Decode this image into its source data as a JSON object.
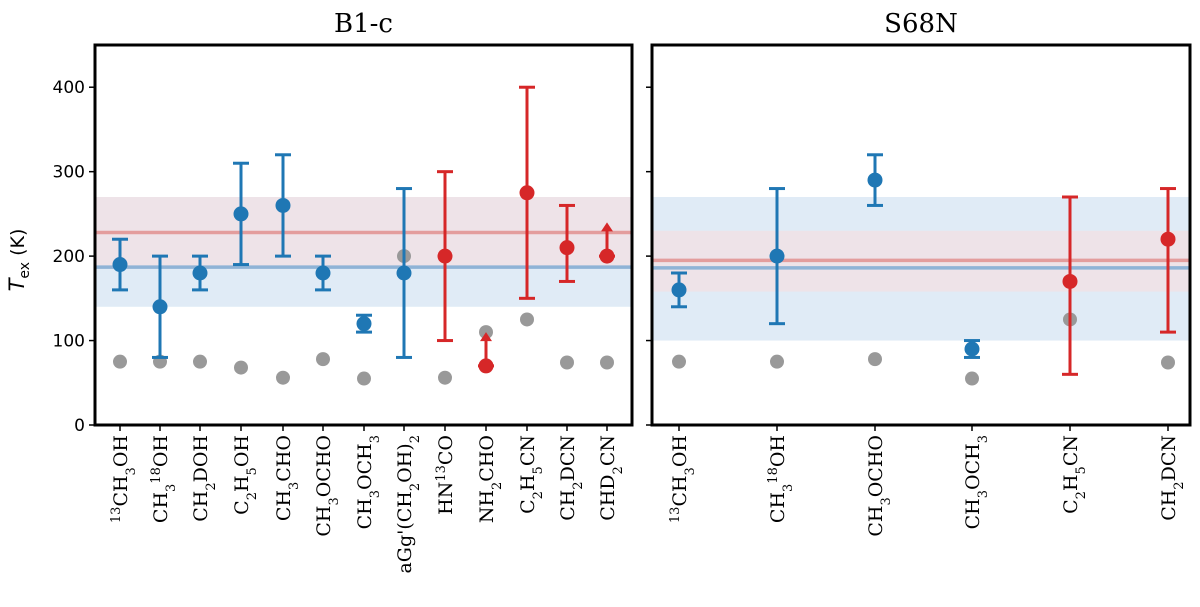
{
  "colors": {
    "blue": "#1f77b4",
    "red": "#d62728",
    "gray": "#999999",
    "blue_band": "#dae8f5",
    "red_band": "#f9dcdc",
    "blue_line": "#8fb3d6",
    "red_line": "#e39d9d"
  },
  "ylabel": "T",
  "ylabel_sub": "ex",
  "ylabel_unit": "(K)",
  "chart_data": [
    {
      "type": "scatter",
      "title": "B1-c",
      "ylim": [
        0,
        450
      ],
      "yticks": [
        0,
        100,
        200,
        300,
        400
      ],
      "ytick_labels": [
        "0",
        "100",
        "200",
        "300",
        "400"
      ],
      "grid": false,
      "categories": [
        [
          "13",
          "CH3OH"
        ],
        "CH318OH",
        "CH2DOH",
        "C2H5OH",
        "CH3CHO",
        "CH3OCHO",
        "CH3OCH3",
        "aGg'(CH2OH)2",
        "HN13CO",
        "NH2CHO",
        "C2H5CN",
        "CH2DCN",
        "CHD2CN"
      ],
      "category_labels": [
        [
          [
            "13",
            "sup"
          ],
          [
            "CH",
            ""
          ],
          [
            "3",
            "sub"
          ],
          [
            "OH",
            ""
          ]
        ],
        [
          [
            "CH",
            ""
          ],
          [
            "3",
            "sub"
          ],
          [
            "18",
            "sup"
          ],
          [
            "OH",
            ""
          ]
        ],
        [
          [
            "CH",
            ""
          ],
          [
            "2",
            "sub"
          ],
          [
            "DOH",
            ""
          ]
        ],
        [
          [
            "C",
            ""
          ],
          [
            "2",
            "sub"
          ],
          [
            "H",
            ""
          ],
          [
            "5",
            "sub"
          ],
          [
            "OH",
            ""
          ]
        ],
        [
          [
            "CH",
            ""
          ],
          [
            "3",
            "sub"
          ],
          [
            "CHO",
            ""
          ]
        ],
        [
          [
            "CH",
            ""
          ],
          [
            "3",
            "sub"
          ],
          [
            "OCHO",
            ""
          ]
        ],
        [
          [
            "CH",
            ""
          ],
          [
            "3",
            "sub"
          ],
          [
            "OCH",
            ""
          ],
          [
            "3",
            "sub"
          ]
        ],
        [
          [
            "aGg'(CH",
            ""
          ],
          [
            "2",
            "sub"
          ],
          [
            "OH)",
            ""
          ],
          [
            "2",
            "sub"
          ]
        ],
        [
          [
            "HN",
            ""
          ],
          [
            "13",
            "sup"
          ],
          [
            "CO",
            ""
          ]
        ],
        [
          [
            "NH",
            ""
          ],
          [
            "2",
            "sub"
          ],
          [
            "CHO",
            ""
          ]
        ],
        [
          [
            "C",
            ""
          ],
          [
            "2",
            "sub"
          ],
          [
            "H",
            ""
          ],
          [
            "5",
            "sub"
          ],
          [
            "CN",
            ""
          ]
        ],
        [
          [
            "CH",
            ""
          ],
          [
            "2",
            "sub"
          ],
          [
            "DCN",
            ""
          ]
        ],
        [
          [
            "CHD",
            ""
          ],
          [
            "2",
            "sub"
          ],
          [
            "CN",
            ""
          ]
        ]
      ],
      "series": [
        {
          "color": "blue",
          "points": [
            {
              "i": 0,
              "y": 190,
              "err_lo": 160,
              "err_hi": 220
            },
            {
              "i": 1,
              "y": 140,
              "err_lo": 80,
              "err_hi": 200
            },
            {
              "i": 2,
              "y": 180,
              "err_lo": 160,
              "err_hi": 200
            },
            {
              "i": 3,
              "y": 250,
              "err_lo": 190,
              "err_hi": 310
            },
            {
              "i": 4,
              "y": 260,
              "err_lo": 200,
              "err_hi": 320
            },
            {
              "i": 5,
              "y": 180,
              "err_lo": 160,
              "err_hi": 200
            },
            {
              "i": 6,
              "y": 120,
              "err_lo": 110,
              "err_hi": 130
            },
            {
              "i": 7,
              "y": 180,
              "err_lo": 80,
              "err_hi": 280
            }
          ]
        },
        {
          "color": "red",
          "points": [
            {
              "i": 8,
              "y": 200,
              "err_lo": 100,
              "err_hi": 300
            },
            {
              "i": 9,
              "y": 70,
              "lower_limit_to": 110
            },
            {
              "i": 10,
              "y": 275,
              "err_lo": 150,
              "err_hi": 400
            },
            {
              "i": 11,
              "y": 210,
              "err_lo": 170,
              "err_hi": 260
            },
            {
              "i": 12,
              "y": 200,
              "lower_limit_to": 240
            }
          ]
        },
        {
          "color": "gray",
          "points": [
            {
              "i": 0,
              "y": 75
            },
            {
              "i": 1,
              "y": 75
            },
            {
              "i": 2,
              "y": 75
            },
            {
              "i": 3,
              "y": 68
            },
            {
              "i": 4,
              "y": 56
            },
            {
              "i": 5,
              "y": 78
            },
            {
              "i": 6,
              "y": 55
            },
            {
              "i": 7,
              "y": 200
            },
            {
              "i": 8,
              "y": 56
            },
            {
              "i": 9,
              "y": 110
            },
            {
              "i": 10,
              "y": 125
            },
            {
              "i": 11,
              "y": 74
            },
            {
              "i": 12,
              "y": 74
            }
          ]
        }
      ],
      "bands": [
        {
          "color": "blue",
          "center": 187,
          "low": 140,
          "high": 270
        },
        {
          "color": "red",
          "center": 228,
          "low": 188,
          "high": 270
        }
      ]
    },
    {
      "type": "scatter",
      "title": "S68N",
      "ylim": [
        0,
        450
      ],
      "yticks": [
        0,
        100,
        200,
        300,
        400
      ],
      "grid": false,
      "categories": [
        "13CH3OH",
        "CH318OH",
        "CH3OCHO",
        "CH3OCH3",
        "C2H5CN",
        "CH2DCN"
      ],
      "category_labels": [
        [
          [
            "13",
            "sup"
          ],
          [
            "CH",
            ""
          ],
          [
            "3",
            "sub"
          ],
          [
            "OH",
            ""
          ]
        ],
        [
          [
            "CH",
            ""
          ],
          [
            "3",
            "sub"
          ],
          [
            "18",
            "sup"
          ],
          [
            "OH",
            ""
          ]
        ],
        [
          [
            "CH",
            ""
          ],
          [
            "3",
            "sub"
          ],
          [
            "OCHO",
            ""
          ]
        ],
        [
          [
            "CH",
            ""
          ],
          [
            "3",
            "sub"
          ],
          [
            "OCH",
            ""
          ],
          [
            "3",
            "sub"
          ]
        ],
        [
          [
            "C",
            ""
          ],
          [
            "2",
            "sub"
          ],
          [
            "H",
            ""
          ],
          [
            "5",
            "sub"
          ],
          [
            "CN",
            ""
          ]
        ],
        [
          [
            "CH",
            ""
          ],
          [
            "2",
            "sub"
          ],
          [
            "DCN",
            ""
          ]
        ]
      ],
      "series": [
        {
          "color": "blue",
          "points": [
            {
              "i": 0,
              "y": 160,
              "err_lo": 140,
              "err_hi": 180
            },
            {
              "i": 1,
              "y": 200,
              "err_lo": 120,
              "err_hi": 280
            },
            {
              "i": 2,
              "y": 290,
              "err_lo": 260,
              "err_hi": 320
            },
            {
              "i": 3,
              "y": 90,
              "err_lo": 80,
              "err_hi": 100
            }
          ]
        },
        {
          "color": "red",
          "points": [
            {
              "i": 4,
              "y": 170,
              "err_lo": 60,
              "err_hi": 270
            },
            {
              "i": 5,
              "y": 220,
              "err_lo": 110,
              "err_hi": 280
            }
          ]
        },
        {
          "color": "gray",
          "points": [
            {
              "i": 0,
              "y": 75
            },
            {
              "i": 1,
              "y": 75
            },
            {
              "i": 2,
              "y": 78
            },
            {
              "i": 3,
              "y": 55
            },
            {
              "i": 4,
              "y": 125
            },
            {
              "i": 5,
              "y": 74
            }
          ]
        }
      ],
      "bands": [
        {
          "color": "blue",
          "center": 186,
          "low": 100,
          "high": 270
        },
        {
          "color": "red",
          "center": 195,
          "low": 158,
          "high": 230
        }
      ]
    }
  ]
}
